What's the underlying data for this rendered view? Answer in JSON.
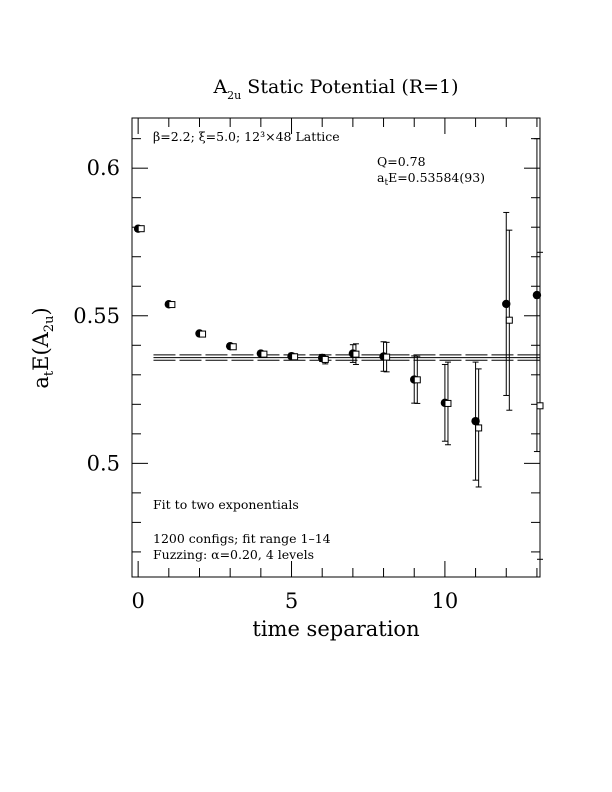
{
  "chart_data": {
    "type": "scatter",
    "title": "A₂ᵤ Static Potential (R=1)",
    "title_main": "A",
    "title_sub": "2u",
    "title_rest": " Static Potential (R=1)",
    "xlabel": "time separation",
    "ylabel_main": "a",
    "ylabel_sub1": "t",
    "ylabel_mid": "E(A",
    "ylabel_sub2": "2u",
    "ylabel_end": ")",
    "xlim": [
      -0.2,
      13.1
    ],
    "ylim": [
      0.4615,
      0.617
    ],
    "xticks": [
      0,
      5,
      10
    ],
    "xtick_labels": [
      "0",
      "5",
      "10"
    ],
    "yticks": [
      0.5,
      0.55,
      0.6
    ],
    "ytick_labels": [
      "0.5",
      "0.55",
      "0.6"
    ],
    "annotations": {
      "lattice": "β=2.2; ξ=5.0; 12³×48 Lattice",
      "q": "Q=0.78",
      "energy_prefix": "a",
      "energy_sub": "t",
      "energy_rest": "E=0.53584(93)",
      "fit_method": "Fit to two exponentials",
      "configs": "1200 configs; fit range 1–14",
      "fuzzing": "Fuzzing: α=0.20, 4 levels"
    },
    "fit": {
      "value": 0.53584,
      "error": 0.00093,
      "x_range": [
        0.5,
        13.1
      ]
    },
    "series": [
      {
        "marker": "filled-circle",
        "points": [
          {
            "x": 0,
            "y": 0.5795,
            "err": 0.0008
          },
          {
            "x": 1,
            "y": 0.5539,
            "err": 0.0008
          },
          {
            "x": 2,
            "y": 0.544,
            "err": 0.0008
          },
          {
            "x": 3,
            "y": 0.5397,
            "err": 0.0008
          },
          {
            "x": 4,
            "y": 0.5372,
            "err": 0.0008
          },
          {
            "x": 5,
            "y": 0.5363,
            "err": 0.001
          },
          {
            "x": 6,
            "y": 0.5357,
            "err": 0.0012
          },
          {
            "x": 7,
            "y": 0.5372,
            "err": 0.003
          },
          {
            "x": 8,
            "y": 0.5362,
            "err": 0.005
          },
          {
            "x": 9,
            "y": 0.5284,
            "err": 0.008
          },
          {
            "x": 10,
            "y": 0.5205,
            "err": 0.013
          },
          {
            "x": 11,
            "y": 0.5143,
            "err": 0.02
          },
          {
            "x": 12,
            "y": 0.554,
            "err": 0.031
          },
          {
            "x": 13,
            "y": 0.557,
            "err": 0.053
          }
        ]
      },
      {
        "marker": "open-square",
        "points": [
          {
            "x": 0.1,
            "y": 0.5795,
            "err": 0.0008
          },
          {
            "x": 1.1,
            "y": 0.5538,
            "err": 0.0008
          },
          {
            "x": 2.1,
            "y": 0.5438,
            "err": 0.0008
          },
          {
            "x": 3.1,
            "y": 0.5395,
            "err": 0.0008
          },
          {
            "x": 4.1,
            "y": 0.537,
            "err": 0.0008
          },
          {
            "x": 5.1,
            "y": 0.5361,
            "err": 0.001
          },
          {
            "x": 6.1,
            "y": 0.5352,
            "err": 0.0015
          },
          {
            "x": 7.1,
            "y": 0.537,
            "err": 0.0035
          },
          {
            "x": 8.1,
            "y": 0.536,
            "err": 0.005
          },
          {
            "x": 9.1,
            "y": 0.5283,
            "err": 0.008
          },
          {
            "x": 10.1,
            "y": 0.5203,
            "err": 0.014
          },
          {
            "x": 11.1,
            "y": 0.512,
            "err": 0.02
          },
          {
            "x": 12.1,
            "y": 0.5485,
            "err": 0.0305
          },
          {
            "x": 13.1,
            "y": 0.5195,
            "err": 0.052
          }
        ]
      }
    ],
    "grid": false,
    "legend": "none"
  }
}
